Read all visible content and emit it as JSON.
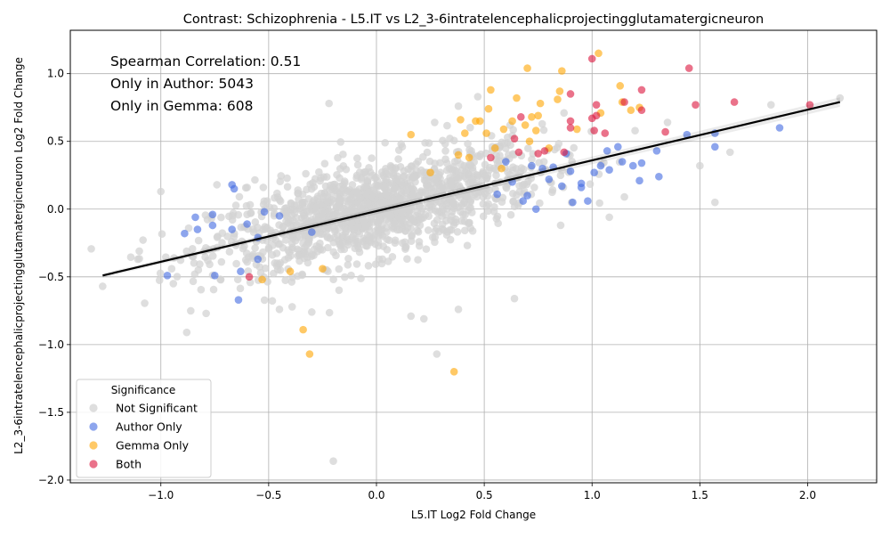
{
  "chart_data": {
    "type": "scatter",
    "title": "Contrast: Schizophrenia - L5.IT vs L2_3-6intratelencephalicprojectingglutamatergicneuron",
    "xlabel": "L5.IT Log2 Fold Change",
    "ylabel": "L2_3-6intratelencephalicprojectingglutamatergicneuron Log2 Fold Change",
    "xlim": [
      -1.42,
      2.32
    ],
    "ylim": [
      -2.02,
      1.32
    ],
    "xticks": [
      -1.0,
      -0.5,
      0.0,
      0.5,
      1.0,
      1.5,
      2.0
    ],
    "xtick_labels": [
      "−1.0",
      "−0.5",
      "0.0",
      "0.5",
      "1.0",
      "1.5",
      "2.0"
    ],
    "yticks": [
      -2.0,
      -1.5,
      -1.0,
      -0.5,
      0.0,
      0.5,
      1.0
    ],
    "ytick_labels": [
      "−2.0",
      "−1.5",
      "−1.0",
      "−0.5",
      "0.0",
      "0.5",
      "1.0"
    ],
    "grid": true,
    "annotations": [
      "Spearman Correlation: 0.51",
      "Only in Author: 5043",
      "Only in Gemma: 608"
    ],
    "legend": {
      "title": "Significance",
      "placement": "lower-left",
      "entries": [
        "Not Significant",
        "Author Only",
        "Gemma Only",
        "Both"
      ]
    },
    "colors": {
      "Not Significant": "#d3d3d3",
      "Author Only": "#4169e1",
      "Gemma Only": "#ffa500",
      "Both": "#dc143c",
      "fit_line": "#000000"
    },
    "fit_line": {
      "x": [
        -1.27,
        2.15
      ],
      "y": [
        -0.49,
        0.79
      ]
    },
    "series": [
      {
        "name": "Author Only",
        "points": [
          [
            -0.67,
            0.18
          ],
          [
            -0.66,
            0.15
          ],
          [
            -0.76,
            -0.04
          ],
          [
            -0.84,
            -0.06
          ],
          [
            -0.76,
            -0.12
          ],
          [
            -0.83,
            -0.15
          ],
          [
            -0.89,
            -0.18
          ],
          [
            -0.97,
            -0.49
          ],
          [
            -0.75,
            -0.49
          ],
          [
            -0.63,
            -0.46
          ],
          [
            -0.64,
            -0.67
          ],
          [
            -0.67,
            -0.15
          ],
          [
            -0.6,
            -0.11
          ],
          [
            -0.52,
            -0.02
          ],
          [
            -0.55,
            -0.21
          ],
          [
            -0.55,
            -0.37
          ],
          [
            -0.45,
            -0.05
          ],
          [
            -0.3,
            -0.17
          ],
          [
            0.6,
            0.35
          ],
          [
            0.63,
            0.2
          ],
          [
            0.7,
            0.1
          ],
          [
            0.72,
            0.32
          ],
          [
            0.77,
            0.3
          ],
          [
            0.82,
            0.31
          ],
          [
            0.86,
            0.17
          ],
          [
            0.9,
            0.28
          ],
          [
            0.91,
            0.05
          ],
          [
            0.95,
            0.19
          ],
          [
            0.98,
            0.06
          ],
          [
            1.01,
            0.27
          ],
          [
            1.04,
            0.32
          ],
          [
            1.07,
            0.43
          ],
          [
            1.08,
            0.29
          ],
          [
            1.12,
            0.46
          ],
          [
            1.14,
            0.35
          ],
          [
            1.19,
            0.32
          ],
          [
            1.22,
            0.21
          ],
          [
            1.23,
            0.34
          ],
          [
            1.3,
            0.43
          ],
          [
            1.31,
            0.24
          ],
          [
            1.44,
            0.55
          ],
          [
            1.57,
            0.46
          ],
          [
            1.57,
            0.56
          ],
          [
            1.87,
            0.6
          ],
          [
            0.8,
            0.22
          ],
          [
            0.74,
            0.0
          ],
          [
            0.68,
            0.06
          ],
          [
            0.88,
            0.41
          ],
          [
            0.95,
            0.16
          ],
          [
            0.56,
            0.11
          ]
        ]
      },
      {
        "name": "Gemma Only",
        "points": [
          [
            0.7,
            1.04
          ],
          [
            0.86,
            1.02
          ],
          [
            1.03,
            1.15
          ],
          [
            1.13,
            0.91
          ],
          [
            0.53,
            0.88
          ],
          [
            0.65,
            0.82
          ],
          [
            0.84,
            0.81
          ],
          [
            0.85,
            0.87
          ],
          [
            0.76,
            0.78
          ],
          [
            0.52,
            0.74
          ],
          [
            0.46,
            0.65
          ],
          [
            0.48,
            0.65
          ],
          [
            0.39,
            0.66
          ],
          [
            0.63,
            0.65
          ],
          [
            0.72,
            0.68
          ],
          [
            0.75,
            0.69
          ],
          [
            0.69,
            0.62
          ],
          [
            0.59,
            0.59
          ],
          [
            0.41,
            0.56
          ],
          [
            0.51,
            0.56
          ],
          [
            0.74,
            0.58
          ],
          [
            0.93,
            0.59
          ],
          [
            1.04,
            0.71
          ],
          [
            1.14,
            0.79
          ],
          [
            1.18,
            0.73
          ],
          [
            1.22,
            0.75
          ],
          [
            0.16,
            0.55
          ],
          [
            0.71,
            0.5
          ],
          [
            0.8,
            0.45
          ],
          [
            0.55,
            0.45
          ],
          [
            0.38,
            0.4
          ],
          [
            0.43,
            0.38
          ],
          [
            0.25,
            0.27
          ],
          [
            0.58,
            0.3
          ],
          [
            -0.4,
            -0.46
          ],
          [
            -0.25,
            -0.44
          ],
          [
            -0.53,
            -0.52
          ],
          [
            -0.34,
            -0.89
          ],
          [
            -0.31,
            -1.07
          ],
          [
            0.36,
            -1.2
          ]
        ]
      },
      {
        "name": "Both",
        "points": [
          [
            1.0,
            1.11
          ],
          [
            1.45,
            1.04
          ],
          [
            1.23,
            0.88
          ],
          [
            0.9,
            0.85
          ],
          [
            1.15,
            0.79
          ],
          [
            1.02,
            0.77
          ],
          [
            1.23,
            0.73
          ],
          [
            1.48,
            0.77
          ],
          [
            1.66,
            0.79
          ],
          [
            2.01,
            0.77
          ],
          [
            0.67,
            0.68
          ],
          [
            1.0,
            0.67
          ],
          [
            1.02,
            0.69
          ],
          [
            0.9,
            0.65
          ],
          [
            0.9,
            0.6
          ],
          [
            1.01,
            0.58
          ],
          [
            1.06,
            0.56
          ],
          [
            1.34,
            0.57
          ],
          [
            0.64,
            0.52
          ],
          [
            0.66,
            0.42
          ],
          [
            0.75,
            0.41
          ],
          [
            0.78,
            0.43
          ],
          [
            0.87,
            0.42
          ],
          [
            0.53,
            0.38
          ],
          [
            -0.59,
            -0.5
          ]
        ]
      }
    ],
    "not_significant_cloud": {
      "count": 1400,
      "x_center": 0.0,
      "x_sd": 0.38,
      "slope": 0.37,
      "y_sd": 0.17,
      "outliers": [
        [
          -1.27,
          -0.57
        ],
        [
          -1.1,
          -0.31
        ],
        [
          -1.0,
          0.13
        ],
        [
          -0.95,
          -0.44
        ],
        [
          -0.88,
          -0.91
        ],
        [
          -0.79,
          -0.77
        ],
        [
          -0.2,
          -1.86
        ],
        [
          -0.22,
          0.78
        ],
        [
          0.28,
          -1.07
        ],
        [
          0.38,
          -0.74
        ],
        [
          0.16,
          -0.79
        ],
        [
          0.22,
          -0.81
        ],
        [
          0.27,
          0.64
        ],
        [
          0.38,
          0.76
        ],
        [
          0.47,
          0.83
        ],
        [
          0.64,
          -0.66
        ],
        [
          1.08,
          -0.06
        ],
        [
          1.15,
          0.09
        ],
        [
          1.5,
          0.32
        ],
        [
          1.57,
          0.05
        ],
        [
          1.64,
          0.42
        ],
        [
          1.83,
          0.77
        ],
        [
          2.15,
          0.82
        ],
        [
          1.35,
          0.64
        ],
        [
          0.87,
          0.71
        ],
        [
          -0.74,
          0.18
        ],
        [
          -0.6,
          0.16
        ],
        [
          -0.45,
          -0.74
        ],
        [
          -0.3,
          -0.76
        ],
        [
          0.04,
          0.49
        ]
      ]
    }
  }
}
